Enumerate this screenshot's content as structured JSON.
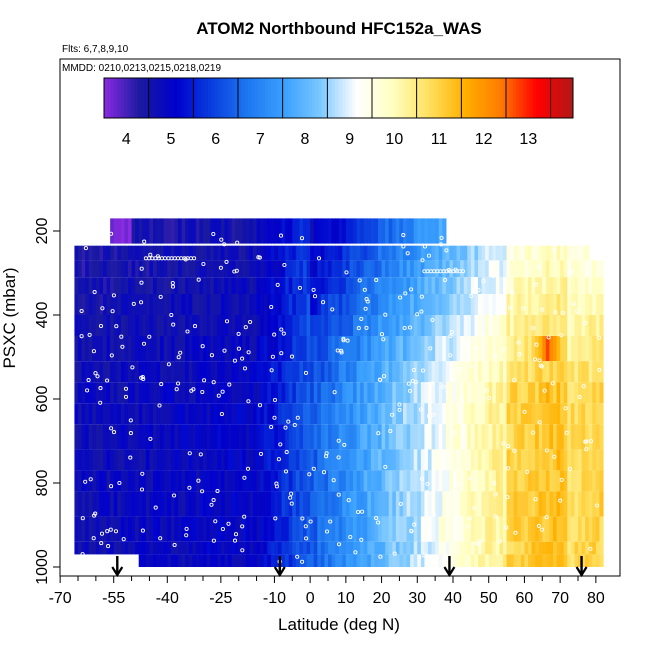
{
  "chart_data": {
    "type": "heatmap",
    "title": "ATOM2 Northbound HFC152a_WAS",
    "notes": [
      "Flts: 6,7,8,9,10",
      "MMDD: 0210,0213,0215,0218,0219"
    ],
    "xlabel": "Latitude (deg N)",
    "ylabel": "PSXC (mbar)",
    "xlim": [
      -70,
      83
    ],
    "ylim": [
      1000,
      140
    ],
    "x_ticks": [
      -70,
      -55,
      -40,
      -25,
      -10,
      0,
      10,
      20,
      30,
      40,
      50,
      60,
      70,
      80
    ],
    "x_minor_ticks": [
      -65,
      -60,
      -50,
      -45,
      -35,
      -30,
      -20,
      -15,
      -5,
      5,
      15,
      25,
      35,
      45,
      55,
      65,
      75
    ],
    "y_ticks": [
      200,
      400,
      600,
      800,
      1000
    ],
    "colorbar": {
      "range": [
        3.5,
        14
      ],
      "ticks": [
        4,
        5,
        6,
        7,
        8,
        9,
        10,
        11,
        12,
        13
      ],
      "colors": [
        "#8a2be2",
        "#1a1aa0",
        "#0000cd",
        "#0a3fdf",
        "#1e78f0",
        "#3aa0ff",
        "#7cc8ff",
        "#ffffff",
        "#ffffc0",
        "#ffe060",
        "#ffb000",
        "#ff7a00",
        "#ff0000",
        "#b01818"
      ]
    },
    "rows": [
      {
        "p": 170,
        "pmax": 230,
        "xmin": -56,
        "xmax": 38
      },
      {
        "p": 235,
        "pmax": 270,
        "xmin": -66,
        "xmax": 78
      },
      {
        "p": 270,
        "pmax": 310,
        "xmin": -66,
        "xmax": 82
      },
      {
        "p": 310,
        "pmax": 350,
        "xmin": -66,
        "xmax": 82
      },
      {
        "p": 350,
        "pmax": 400,
        "xmin": -66,
        "xmax": 82
      },
      {
        "p": 400,
        "pmax": 450,
        "xmin": -66,
        "xmax": 82
      },
      {
        "p": 450,
        "pmax": 510,
        "xmin": -66,
        "xmax": 82
      },
      {
        "p": 510,
        "pmax": 560,
        "xmin": -66,
        "xmax": 82
      },
      {
        "p": 560,
        "pmax": 610,
        "xmin": -66,
        "xmax": 82
      },
      {
        "p": 610,
        "pmax": 660,
        "xmin": -66,
        "xmax": 82
      },
      {
        "p": 660,
        "pmax": 720,
        "xmin": -66,
        "xmax": 82
      },
      {
        "p": 720,
        "pmax": 770,
        "xmin": -66,
        "xmax": 82
      },
      {
        "p": 770,
        "pmax": 820,
        "xmin": -66,
        "xmax": 82
      },
      {
        "p": 820,
        "pmax": 880,
        "xmin": -66,
        "xmax": 82
      },
      {
        "p": 880,
        "pmax": 940,
        "xmin": -66,
        "xmax": 82
      },
      {
        "p": 940,
        "pmax": 970,
        "xmin": -66,
        "xmax": 82
      },
      {
        "p": 970,
        "pmax": 1000,
        "xmin": -48,
        "xmax": 82
      }
    ],
    "anomalies": [
      {
        "lat": 66.5,
        "p": 480,
        "value": 12.8
      },
      {
        "lat": 66.5,
        "p": 585,
        "value": 11.5
      },
      {
        "lat": 54,
        "p": 790,
        "value": 10.3
      },
      {
        "lat": 38,
        "p": 930,
        "value": 10.6
      }
    ],
    "arrows_lat": [
      -54,
      -8.5,
      39,
      76
    ]
  }
}
